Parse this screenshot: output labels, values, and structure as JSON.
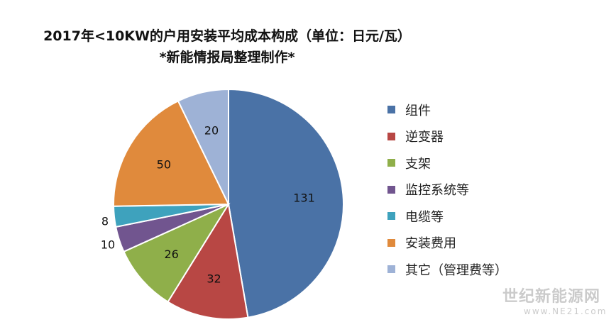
{
  "chart_data": {
    "type": "pie",
    "title": "2017年<10KW的户用安装平均成本构成（单位：日元/瓦）",
    "subtitle": "*新能情报局整理制作*",
    "legend_position": "right",
    "slices": [
      {
        "label": "组件",
        "value": 131,
        "color": "#4A72A6"
      },
      {
        "label": "逆变器",
        "value": 32,
        "color": "#B84744"
      },
      {
        "label": "支架",
        "value": 26,
        "color": "#8FAF4A"
      },
      {
        "label": "监控系统等",
        "value": 10,
        "color": "#71558F"
      },
      {
        "label": "电缆等",
        "value": 8,
        "color": "#3EA2BD"
      },
      {
        "label": "安装费用",
        "value": 50,
        "color": "#E08A3C"
      },
      {
        "label": "其它（管理费等）",
        "value": 20,
        "color": "#9EB2D6"
      }
    ]
  },
  "watermark": {
    "text": "世纪新能源网",
    "url": "www.NE21.com"
  }
}
